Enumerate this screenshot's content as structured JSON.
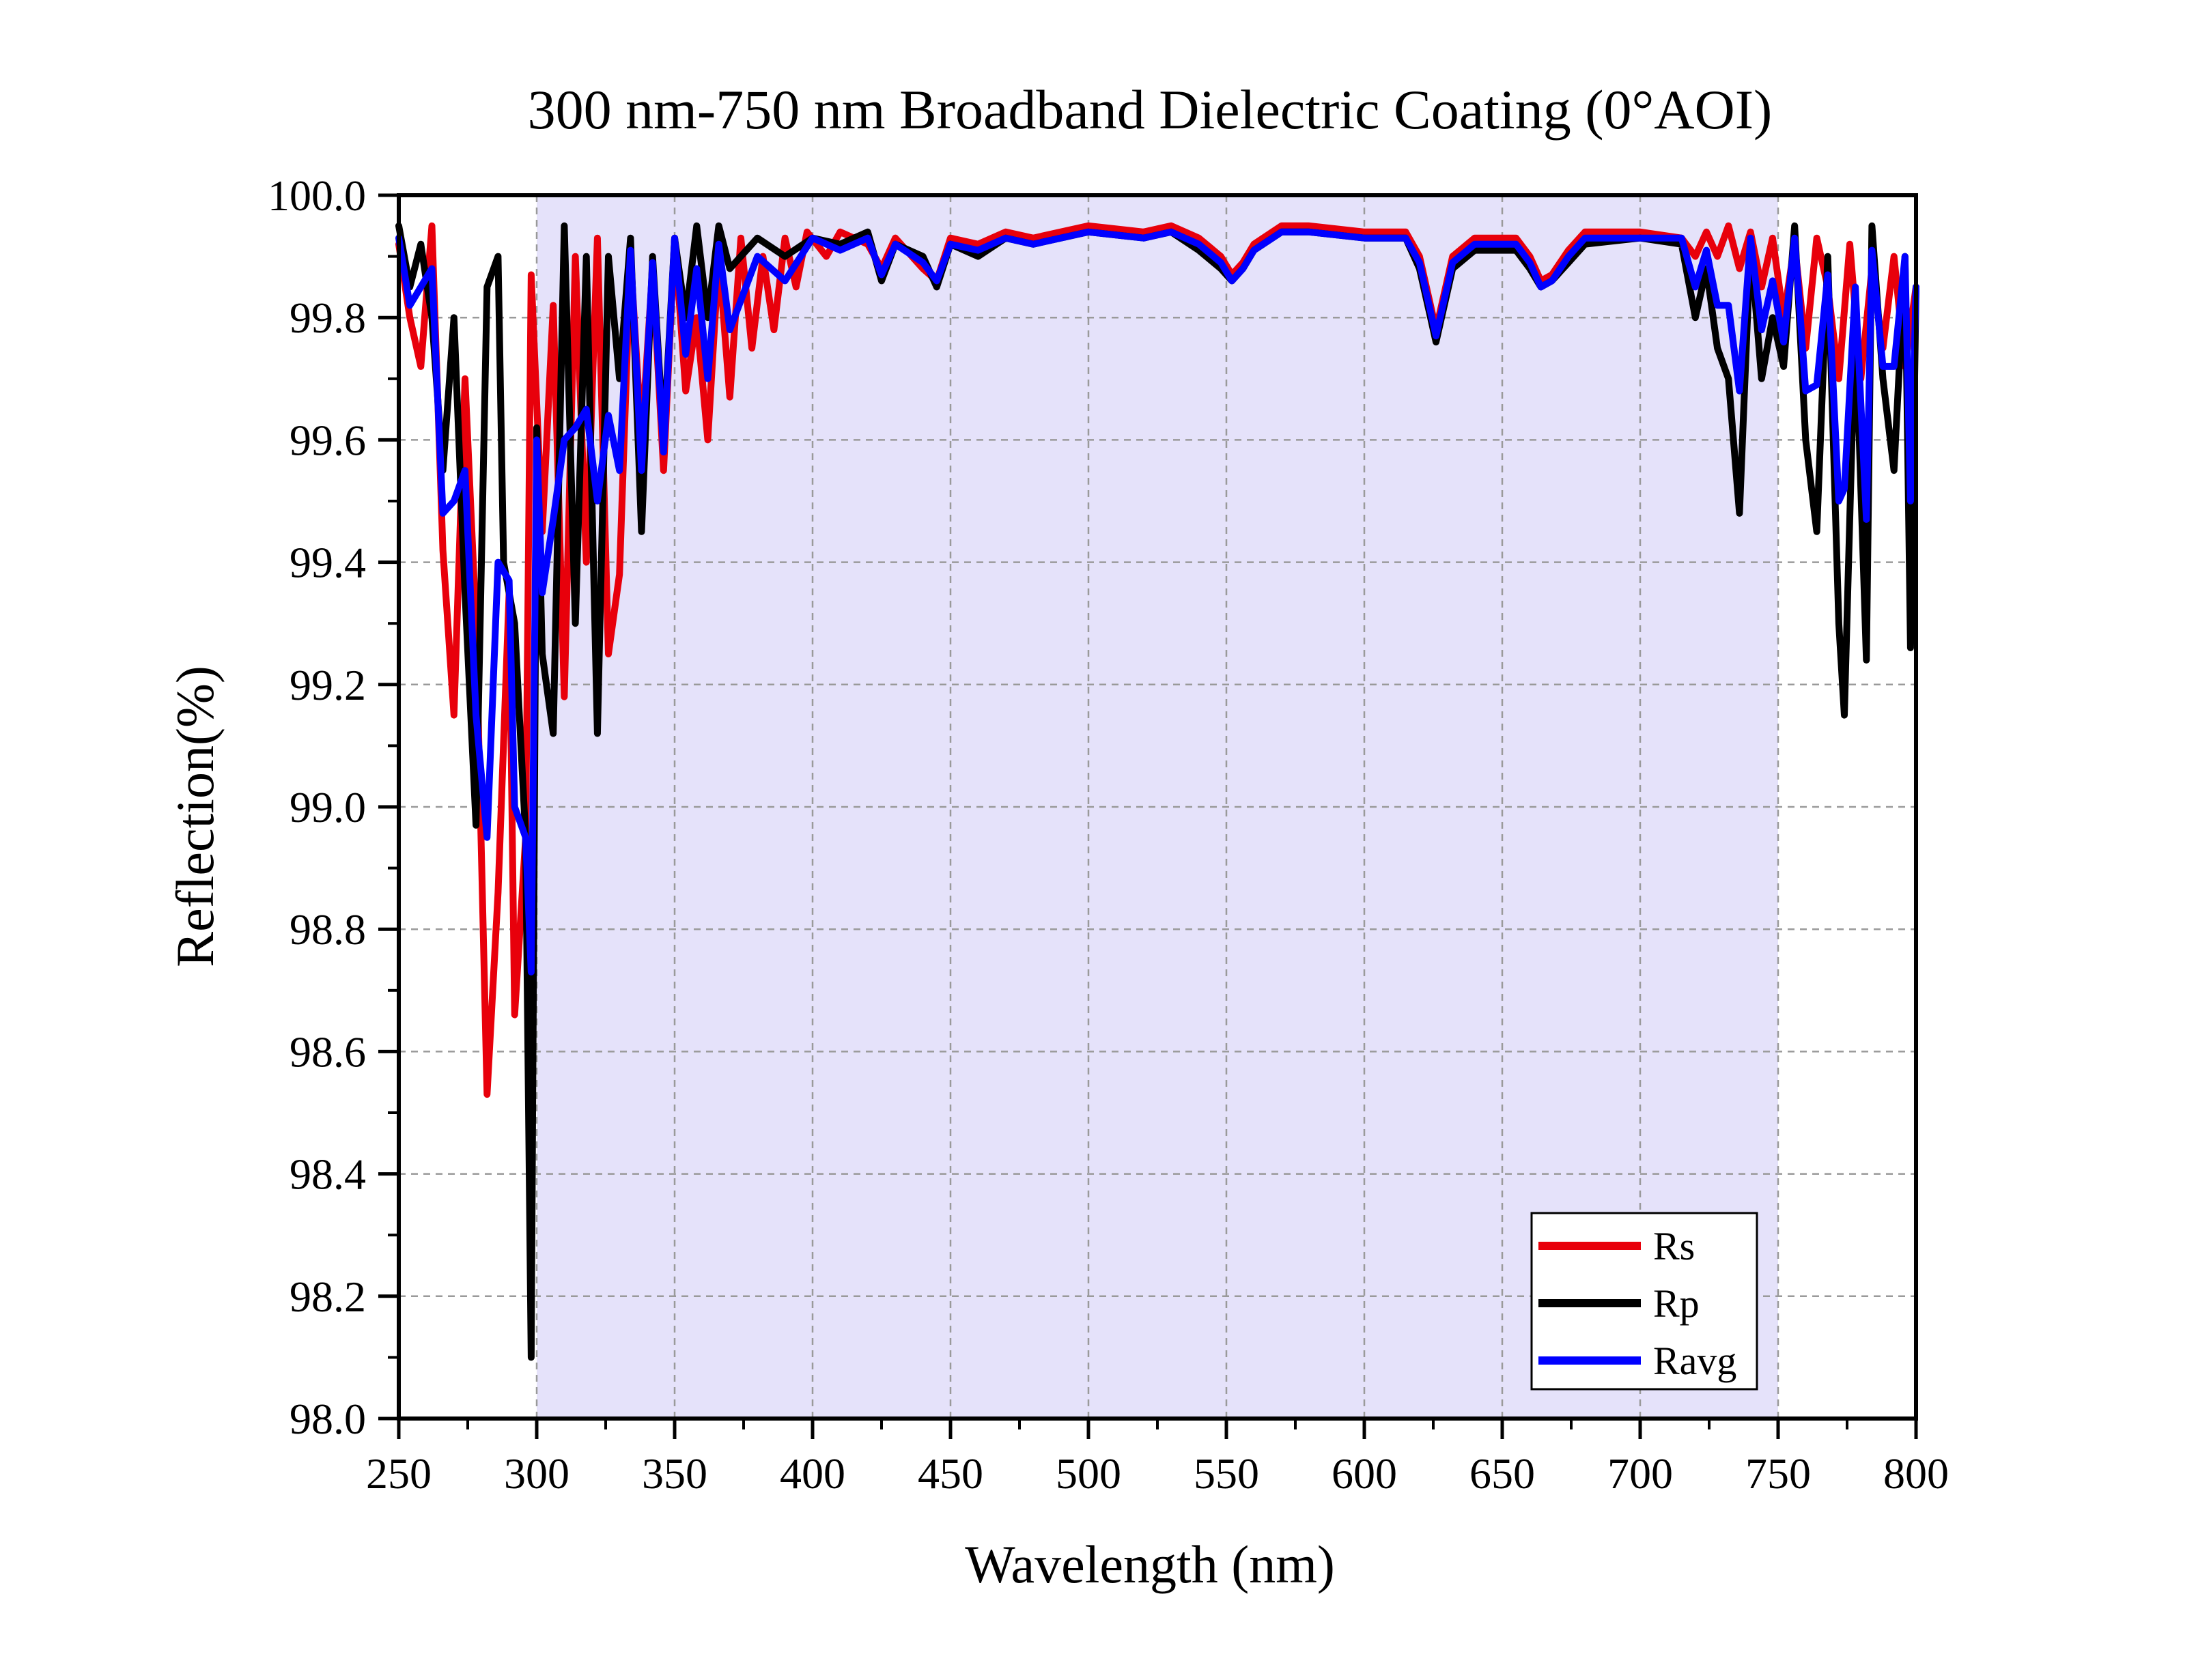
{
  "chart_data": {
    "type": "line",
    "title": "300 nm-750 nm Broadband Dielectric Coating (0°AOI)",
    "xlabel": "Wavelength (nm)",
    "ylabel": "Reflection(%)",
    "xlim": [
      250,
      800
    ],
    "ylim": [
      98.0,
      100.0
    ],
    "x_ticks": [
      "250",
      "300",
      "350",
      "400",
      "450",
      "500",
      "550",
      "600",
      "650",
      "700",
      "750",
      "800"
    ],
    "y_ticks": [
      "98.0",
      "98.2",
      "98.4",
      "98.6",
      "98.8",
      "99.0",
      "99.2",
      "99.4",
      "99.6",
      "99.8",
      "100.0"
    ],
    "grid": true,
    "shaded_band": [
      300,
      750
    ],
    "legend_position": "bottom-right",
    "series": [
      {
        "name": "Rs",
        "color": "#e8000b",
        "points": [
          [
            250,
            99.92
          ],
          [
            254,
            99.8
          ],
          [
            258,
            99.72
          ],
          [
            262,
            99.95
          ],
          [
            266,
            99.42
          ],
          [
            270,
            99.15
          ],
          [
            274,
            99.7
          ],
          [
            278,
            99.3
          ],
          [
            282,
            98.53
          ],
          [
            286,
            98.86
          ],
          [
            290,
            99.35
          ],
          [
            292,
            98.66
          ],
          [
            296,
            98.95
          ],
          [
            298,
            99.87
          ],
          [
            302,
            99.45
          ],
          [
            306,
            99.82
          ],
          [
            310,
            99.18
          ],
          [
            314,
            99.9
          ],
          [
            318,
            99.4
          ],
          [
            322,
            99.93
          ],
          [
            326,
            99.25
          ],
          [
            330,
            99.38
          ],
          [
            334,
            99.9
          ],
          [
            338,
            99.6
          ],
          [
            342,
            99.88
          ],
          [
            346,
            99.55
          ],
          [
            350,
            99.93
          ],
          [
            354,
            99.68
          ],
          [
            358,
            99.8
          ],
          [
            362,
            99.6
          ],
          [
            366,
            99.9
          ],
          [
            370,
            99.67
          ],
          [
            374,
            99.93
          ],
          [
            378,
            99.75
          ],
          [
            382,
            99.9
          ],
          [
            386,
            99.78
          ],
          [
            390,
            99.93
          ],
          [
            394,
            99.85
          ],
          [
            398,
            99.94
          ],
          [
            405,
            99.9
          ],
          [
            410,
            99.94
          ],
          [
            420,
            99.92
          ],
          [
            425,
            99.88
          ],
          [
            430,
            99.93
          ],
          [
            440,
            99.88
          ],
          [
            445,
            99.86
          ],
          [
            450,
            99.93
          ],
          [
            460,
            99.92
          ],
          [
            470,
            99.94
          ],
          [
            480,
            99.93
          ],
          [
            500,
            99.95
          ],
          [
            520,
            99.94
          ],
          [
            530,
            99.95
          ],
          [
            540,
            99.93
          ],
          [
            548,
            99.9
          ],
          [
            552,
            99.87
          ],
          [
            556,
            99.89
          ],
          [
            560,
            99.92
          ],
          [
            570,
            99.95
          ],
          [
            580,
            99.95
          ],
          [
            600,
            99.94
          ],
          [
            615,
            99.94
          ],
          [
            620,
            99.9
          ],
          [
            624,
            99.82
          ],
          [
            626,
            99.78
          ],
          [
            628,
            99.82
          ],
          [
            632,
            99.9
          ],
          [
            640,
            99.93
          ],
          [
            655,
            99.93
          ],
          [
            660,
            99.9
          ],
          [
            664,
            99.86
          ],
          [
            668,
            99.87
          ],
          [
            674,
            99.91
          ],
          [
            680,
            99.94
          ],
          [
            700,
            99.94
          ],
          [
            715,
            99.93
          ],
          [
            720,
            99.9
          ],
          [
            724,
            99.94
          ],
          [
            728,
            99.9
          ],
          [
            732,
            99.95
          ],
          [
            736,
            99.88
          ],
          [
            740,
            99.94
          ],
          [
            744,
            99.85
          ],
          [
            748,
            99.93
          ],
          [
            752,
            99.8
          ],
          [
            756,
            99.92
          ],
          [
            760,
            99.75
          ],
          [
            764,
            99.93
          ],
          [
            768,
            99.85
          ],
          [
            772,
            99.7
          ],
          [
            776,
            99.92
          ],
          [
            780,
            99.7
          ],
          [
            784,
            99.88
          ],
          [
            788,
            99.75
          ],
          [
            792,
            99.9
          ],
          [
            796,
            99.72
          ],
          [
            800,
            99.85
          ]
        ]
      },
      {
        "name": "Rp",
        "color": "#000000",
        "points": [
          [
            250,
            99.95
          ],
          [
            254,
            99.85
          ],
          [
            258,
            99.92
          ],
          [
            262,
            99.8
          ],
          [
            266,
            99.55
          ],
          [
            270,
            99.8
          ],
          [
            274,
            99.35
          ],
          [
            278,
            98.97
          ],
          [
            282,
            99.85
          ],
          [
            286,
            99.9
          ],
          [
            288,
            99.4
          ],
          [
            292,
            99.3
          ],
          [
            296,
            98.95
          ],
          [
            298,
            98.1
          ],
          [
            300,
            99.62
          ],
          [
            302,
            99.25
          ],
          [
            306,
            99.12
          ],
          [
            310,
            99.95
          ],
          [
            314,
            99.3
          ],
          [
            318,
            99.9
          ],
          [
            322,
            99.12
          ],
          [
            326,
            99.9
          ],
          [
            330,
            99.7
          ],
          [
            334,
            99.93
          ],
          [
            338,
            99.45
          ],
          [
            342,
            99.9
          ],
          [
            346,
            99.6
          ],
          [
            350,
            99.93
          ],
          [
            354,
            99.8
          ],
          [
            358,
            99.95
          ],
          [
            362,
            99.8
          ],
          [
            366,
            99.95
          ],
          [
            370,
            99.88
          ],
          [
            380,
            99.93
          ],
          [
            390,
            99.9
          ],
          [
            400,
            99.93
          ],
          [
            410,
            99.92
          ],
          [
            420,
            99.94
          ],
          [
            425,
            99.86
          ],
          [
            430,
            99.92
          ],
          [
            440,
            99.9
          ],
          [
            445,
            99.85
          ],
          [
            450,
            99.92
          ],
          [
            460,
            99.9
          ],
          [
            470,
            99.93
          ],
          [
            480,
            99.92
          ],
          [
            500,
            99.94
          ],
          [
            520,
            99.93
          ],
          [
            530,
            99.94
          ],
          [
            540,
            99.91
          ],
          [
            548,
            99.88
          ],
          [
            552,
            99.86
          ],
          [
            556,
            99.88
          ],
          [
            560,
            99.91
          ],
          [
            570,
            99.94
          ],
          [
            580,
            99.94
          ],
          [
            600,
            99.93
          ],
          [
            615,
            99.93
          ],
          [
            620,
            99.88
          ],
          [
            624,
            99.8
          ],
          [
            626,
            99.76
          ],
          [
            628,
            99.8
          ],
          [
            632,
            99.88
          ],
          [
            640,
            99.91
          ],
          [
            655,
            99.91
          ],
          [
            660,
            99.88
          ],
          [
            664,
            99.85
          ],
          [
            668,
            99.86
          ],
          [
            674,
            99.89
          ],
          [
            680,
            99.92
          ],
          [
            700,
            99.93
          ],
          [
            715,
            99.92
          ],
          [
            720,
            99.8
          ],
          [
            724,
            99.88
          ],
          [
            728,
            99.75
          ],
          [
            732,
            99.7
          ],
          [
            736,
            99.48
          ],
          [
            740,
            99.92
          ],
          [
            744,
            99.7
          ],
          [
            748,
            99.8
          ],
          [
            752,
            99.72
          ],
          [
            756,
            99.95
          ],
          [
            760,
            99.6
          ],
          [
            764,
            99.45
          ],
          [
            768,
            99.9
          ],
          [
            772,
            99.3
          ],
          [
            774,
            99.15
          ],
          [
            778,
            99.8
          ],
          [
            782,
            99.24
          ],
          [
            784,
            99.95
          ],
          [
            788,
            99.7
          ],
          [
            792,
            99.55
          ],
          [
            796,
            99.9
          ],
          [
            798,
            99.26
          ],
          [
            800,
            99.85
          ]
        ]
      },
      {
        "name": "Ravg",
        "color": "#0000ff",
        "points": [
          [
            250,
            99.93
          ],
          [
            254,
            99.82
          ],
          [
            258,
            99.85
          ],
          [
            262,
            99.88
          ],
          [
            266,
            99.48
          ],
          [
            270,
            99.5
          ],
          [
            274,
            99.55
          ],
          [
            278,
            99.15
          ],
          [
            282,
            98.95
          ],
          [
            286,
            99.4
          ],
          [
            290,
            99.37
          ],
          [
            292,
            99.0
          ],
          [
            296,
            98.95
          ],
          [
            298,
            98.73
          ],
          [
            300,
            99.6
          ],
          [
            302,
            99.35
          ],
          [
            306,
            99.47
          ],
          [
            310,
            99.6
          ],
          [
            314,
            99.62
          ],
          [
            318,
            99.65
          ],
          [
            322,
            99.5
          ],
          [
            326,
            99.64
          ],
          [
            330,
            99.55
          ],
          [
            334,
            99.91
          ],
          [
            338,
            99.55
          ],
          [
            342,
            99.89
          ],
          [
            346,
            99.58
          ],
          [
            350,
            99.93
          ],
          [
            354,
            99.74
          ],
          [
            358,
            99.88
          ],
          [
            362,
            99.7
          ],
          [
            366,
            99.92
          ],
          [
            370,
            99.78
          ],
          [
            380,
            99.9
          ],
          [
            390,
            99.86
          ],
          [
            400,
            99.93
          ],
          [
            410,
            99.91
          ],
          [
            420,
            99.93
          ],
          [
            425,
            99.87
          ],
          [
            430,
            99.92
          ],
          [
            440,
            99.89
          ],
          [
            445,
            99.86
          ],
          [
            450,
            99.92
          ],
          [
            460,
            99.91
          ],
          [
            470,
            99.93
          ],
          [
            480,
            99.92
          ],
          [
            500,
            99.94
          ],
          [
            520,
            99.93
          ],
          [
            530,
            99.94
          ],
          [
            540,
            99.92
          ],
          [
            548,
            99.89
          ],
          [
            552,
            99.86
          ],
          [
            556,
            99.88
          ],
          [
            560,
            99.91
          ],
          [
            570,
            99.94
          ],
          [
            580,
            99.94
          ],
          [
            600,
            99.93
          ],
          [
            615,
            99.93
          ],
          [
            620,
            99.89
          ],
          [
            624,
            99.81
          ],
          [
            626,
            99.77
          ],
          [
            628,
            99.81
          ],
          [
            632,
            99.89
          ],
          [
            640,
            99.92
          ],
          [
            655,
            99.92
          ],
          [
            660,
            99.89
          ],
          [
            664,
            99.85
          ],
          [
            668,
            99.86
          ],
          [
            674,
            99.9
          ],
          [
            680,
            99.93
          ],
          [
            700,
            99.93
          ],
          [
            715,
            99.93
          ],
          [
            720,
            99.85
          ],
          [
            724,
            99.91
          ],
          [
            728,
            99.82
          ],
          [
            732,
            99.82
          ],
          [
            736,
            99.68
          ],
          [
            740,
            99.93
          ],
          [
            744,
            99.78
          ],
          [
            748,
            99.86
          ],
          [
            752,
            99.76
          ],
          [
            756,
            99.93
          ],
          [
            760,
            99.68
          ],
          [
            764,
            99.69
          ],
          [
            768,
            99.87
          ],
          [
            772,
            99.5
          ],
          [
            774,
            99.52
          ],
          [
            778,
            99.85
          ],
          [
            782,
            99.47
          ],
          [
            784,
            99.91
          ],
          [
            788,
            99.72
          ],
          [
            792,
            99.72
          ],
          [
            796,
            99.9
          ],
          [
            798,
            99.5
          ],
          [
            800,
            99.85
          ]
        ]
      }
    ]
  }
}
